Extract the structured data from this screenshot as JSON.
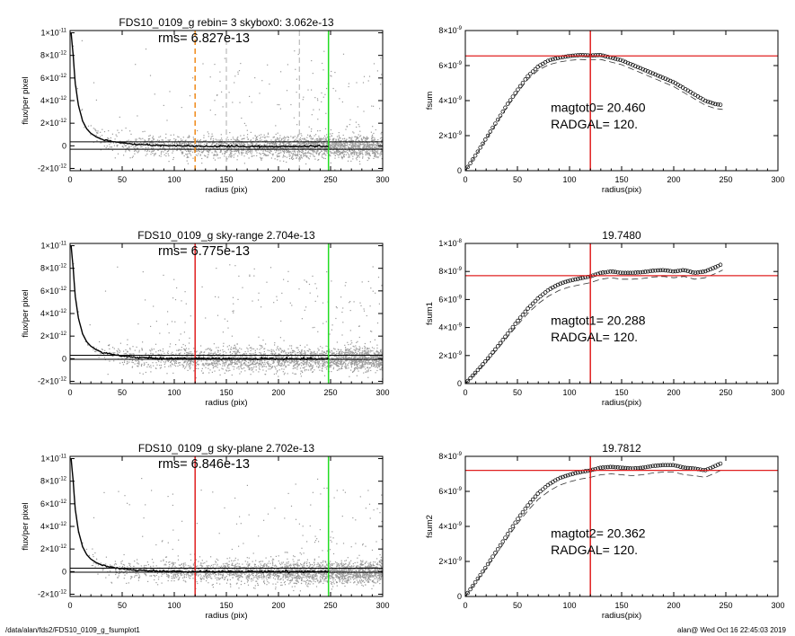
{
  "footer": {
    "path": "/data/alan/fds2/FDS10_0109_g_fsumplot1",
    "stamp": "alan@  Wed Oct 16 22:45:03 2019"
  },
  "colors": {
    "red": "#e02020",
    "green": "#22dd22",
    "orange": "#f08a1a",
    "points": "#9a9a9a",
    "gray_dash": "#999999"
  },
  "chart_data": [
    {
      "type": "scatter",
      "panel": "flux-1",
      "title": "FDS10_0109_g rebin= 3    skybox0:  3.062e-13",
      "subtitle": "rms= 6.827e-13",
      "xlabel": "radius (pix)",
      "ylabel": "flux/per pixel",
      "xlim": [
        0,
        300
      ],
      "ylim": [
        -2.2e-12,
        1.02e-11
      ],
      "xticks": [
        "0",
        "50",
        "100",
        "150",
        "200",
        "250",
        "300"
      ],
      "yticks": [
        {
          "v": -2e-12,
          "m": "-2",
          "e": "-12"
        },
        {
          "v": 0,
          "m": "0",
          "e": ""
        },
        {
          "v": 2e-12,
          "m": "2",
          "e": "-12"
        },
        {
          "v": 4e-12,
          "m": "4",
          "e": "-12"
        },
        {
          "v": 6e-12,
          "m": "6",
          "e": "-12"
        },
        {
          "v": 8e-12,
          "m": "8",
          "e": "-12"
        },
        {
          "v": 1e-11,
          "m": "1",
          "e": "-11"
        }
      ],
      "sky_band": [
        -3e-13,
        3.5e-13
      ],
      "vlines": [
        {
          "x": 120,
          "color": "orange",
          "dash": true
        },
        {
          "x": 150,
          "color": "gray_dash",
          "dash": true
        },
        {
          "x": 220,
          "color": "gray_dash",
          "dash": true
        },
        {
          "x": 248,
          "color": "green",
          "dash": false
        }
      ],
      "profile": [
        [
          1,
          1e-11
        ],
        [
          3,
          8e-12
        ],
        [
          5,
          5.5e-12
        ],
        [
          8,
          3.6e-12
        ],
        [
          12,
          2.2e-12
        ],
        [
          16,
          1.5e-12
        ],
        [
          20,
          1.1e-12
        ],
        [
          25,
          8e-13
        ],
        [
          30,
          6e-13
        ],
        [
          40,
          4e-13
        ],
        [
          50,
          2.5e-13
        ],
        [
          60,
          1.5e-13
        ],
        [
          70,
          1e-13
        ],
        [
          80,
          5e-14
        ],
        [
          100,
          0
        ],
        [
          120,
          -5e-14
        ],
        [
          150,
          -5e-14
        ],
        [
          200,
          -5e-14
        ],
        [
          248,
          -5e-14
        ]
      ],
      "scatter_sigma": 5e-13
    },
    {
      "type": "line",
      "panel": "fsum-1",
      "title": "",
      "xlabel": "radius(pix)",
      "ylabel": "fsum",
      "xlim": [
        0,
        300
      ],
      "ylim": [
        0,
        8e-09
      ],
      "xticks": [
        "0",
        "50",
        "100",
        "150",
        "200",
        "250",
        "300"
      ],
      "yticks": [
        {
          "v": 0,
          "m": "0",
          "e": ""
        },
        {
          "v": 2e-09,
          "m": "2",
          "e": "-9"
        },
        {
          "v": 4e-09,
          "m": "4",
          "e": "-9"
        },
        {
          "v": 6e-09,
          "m": "6",
          "e": "-9"
        },
        {
          "v": 8e-09,
          "m": "8",
          "e": "-9"
        }
      ],
      "hline": 6.55e-09,
      "vline": 120,
      "annot1": "magtot0=  20.460",
      "annot2": "RADGAL=    120.",
      "curve": [
        [
          0,
          0
        ],
        [
          10,
          9e-10
        ],
        [
          20,
          1.85e-09
        ],
        [
          30,
          2.8e-09
        ],
        [
          40,
          3.75e-09
        ],
        [
          50,
          4.6e-09
        ],
        [
          60,
          5.4e-09
        ],
        [
          70,
          5.95e-09
        ],
        [
          80,
          6.3e-09
        ],
        [
          90,
          6.45e-09
        ],
        [
          100,
          6.55e-09
        ],
        [
          110,
          6.6e-09
        ],
        [
          120,
          6.58e-09
        ],
        [
          130,
          6.6e-09
        ],
        [
          140,
          6.45e-09
        ],
        [
          150,
          6.3e-09
        ],
        [
          160,
          6.05e-09
        ],
        [
          170,
          5.8e-09
        ],
        [
          180,
          5.55e-09
        ],
        [
          190,
          5.3e-09
        ],
        [
          200,
          5.05e-09
        ],
        [
          210,
          4.7e-09
        ],
        [
          220,
          4.35e-09
        ],
        [
          230,
          4e-09
        ],
        [
          240,
          3.8e-09
        ],
        [
          247,
          3.75e-09
        ]
      ],
      "dash_offset": -2.5e-10
    },
    {
      "type": "scatter",
      "panel": "flux-2",
      "title": "FDS10_0109_g sky-range  2.704e-13",
      "subtitle": "rms= 6.775e-13",
      "xlabel": "radius (pix)",
      "ylabel": "flux/per pixel",
      "xlim": [
        0,
        300
      ],
      "ylim": [
        -2.2e-12,
        1.02e-11
      ],
      "xticks": [
        "0",
        "50",
        "100",
        "150",
        "200",
        "250",
        "300"
      ],
      "yticks": [
        {
          "v": -2e-12,
          "m": "-2",
          "e": "-12"
        },
        {
          "v": 0,
          "m": "0",
          "e": ""
        },
        {
          "v": 2e-12,
          "m": "2",
          "e": "-12"
        },
        {
          "v": 4e-12,
          "m": "4",
          "e": "-12"
        },
        {
          "v": 6e-12,
          "m": "6",
          "e": "-12"
        },
        {
          "v": 8e-12,
          "m": "8",
          "e": "-12"
        },
        {
          "v": 1e-11,
          "m": "1",
          "e": "-11"
        }
      ],
      "sky_band": [
        -5e-14,
        3e-13
      ],
      "vlines": [
        {
          "x": 120,
          "color": "red",
          "dash": false
        },
        {
          "x": 248,
          "color": "green",
          "dash": false
        }
      ],
      "profile": [
        [
          1,
          1e-11
        ],
        [
          3,
          8e-12
        ],
        [
          5,
          5.5e-12
        ],
        [
          8,
          3.6e-12
        ],
        [
          12,
          2.2e-12
        ],
        [
          16,
          1.5e-12
        ],
        [
          20,
          1.1e-12
        ],
        [
          25,
          8e-13
        ],
        [
          30,
          6e-13
        ],
        [
          40,
          4e-13
        ],
        [
          50,
          2.5e-13
        ],
        [
          60,
          1.5e-13
        ],
        [
          70,
          1e-13
        ],
        [
          80,
          5e-14
        ],
        [
          100,
          2e-14
        ],
        [
          120,
          0
        ],
        [
          150,
          0
        ],
        [
          200,
          0
        ],
        [
          248,
          0
        ]
      ],
      "scatter_sigma": 5e-13
    },
    {
      "type": "line",
      "panel": "fsum-2",
      "title": "19.7480",
      "xlabel": "radius(pix)",
      "ylabel": "fsum1",
      "xlim": [
        0,
        300
      ],
      "ylim": [
        0,
        1e-08
      ],
      "xticks": [
        "0",
        "50",
        "100",
        "150",
        "200",
        "250",
        "300"
      ],
      "yticks": [
        {
          "v": 0,
          "m": "0",
          "e": ""
        },
        {
          "v": 2e-09,
          "m": "2",
          "e": "-9"
        },
        {
          "v": 4e-09,
          "m": "4",
          "e": "-9"
        },
        {
          "v": 6e-09,
          "m": "6",
          "e": "-9"
        },
        {
          "v": 8e-09,
          "m": "8",
          "e": "-9"
        },
        {
          "v": 1e-08,
          "m": "1",
          "e": "-8"
        }
      ],
      "hline": 7.7e-09,
      "vline": 120,
      "annot1": "magtot1=  20.288",
      "annot2": "RADGAL=    120.",
      "curve": [
        [
          0,
          0
        ],
        [
          10,
          8e-10
        ],
        [
          20,
          1.65e-09
        ],
        [
          30,
          2.55e-09
        ],
        [
          40,
          3.5e-09
        ],
        [
          50,
          4.45e-09
        ],
        [
          60,
          5.35e-09
        ],
        [
          70,
          6.1e-09
        ],
        [
          80,
          6.7e-09
        ],
        [
          90,
          7.1e-09
        ],
        [
          100,
          7.35e-09
        ],
        [
          110,
          7.5e-09
        ],
        [
          120,
          7.65e-09
        ],
        [
          130,
          7.9e-09
        ],
        [
          140,
          8e-09
        ],
        [
          150,
          7.9e-09
        ],
        [
          160,
          7.9e-09
        ],
        [
          170,
          7.95e-09
        ],
        [
          180,
          8.05e-09
        ],
        [
          190,
          8.1e-09
        ],
        [
          200,
          8e-09
        ],
        [
          210,
          8.1e-09
        ],
        [
          220,
          7.9e-09
        ],
        [
          230,
          8e-09
        ],
        [
          240,
          8.3e-09
        ],
        [
          247,
          8.55e-09
        ]
      ],
      "dash_offset": -4.5e-10
    },
    {
      "type": "scatter",
      "panel": "flux-3",
      "title": "FDS10_0109_g sky-plane  2.702e-13",
      "subtitle": "rms= 6.846e-13",
      "xlabel": "radius (pix)",
      "ylabel": "flux/per pixel",
      "xlim": [
        0,
        300
      ],
      "ylim": [
        -2.2e-12,
        1.02e-11
      ],
      "xticks": [
        "0",
        "50",
        "100",
        "150",
        "200",
        "250",
        "300"
      ],
      "yticks": [
        {
          "v": -2e-12,
          "m": "-2",
          "e": "-12"
        },
        {
          "v": 0,
          "m": "0",
          "e": ""
        },
        {
          "v": 2e-12,
          "m": "2",
          "e": "-12"
        },
        {
          "v": 4e-12,
          "m": "4",
          "e": "-12"
        },
        {
          "v": 6e-12,
          "m": "6",
          "e": "-12"
        },
        {
          "v": 8e-12,
          "m": "8",
          "e": "-12"
        },
        {
          "v": 1e-11,
          "m": "1",
          "e": "-11"
        }
      ],
      "sky_band": [
        -5e-14,
        3e-13
      ],
      "vlines": [
        {
          "x": 120,
          "color": "red",
          "dash": false
        },
        {
          "x": 248,
          "color": "green",
          "dash": false
        }
      ],
      "profile": [
        [
          1,
          1e-11
        ],
        [
          3,
          8e-12
        ],
        [
          5,
          5.5e-12
        ],
        [
          8,
          3.6e-12
        ],
        [
          12,
          2.2e-12
        ],
        [
          16,
          1.5e-12
        ],
        [
          20,
          1.1e-12
        ],
        [
          25,
          8e-13
        ],
        [
          30,
          6e-13
        ],
        [
          40,
          4e-13
        ],
        [
          50,
          2.5e-13
        ],
        [
          60,
          1.5e-13
        ],
        [
          70,
          1e-13
        ],
        [
          80,
          5e-14
        ],
        [
          100,
          2e-14
        ],
        [
          120,
          0
        ],
        [
          150,
          0
        ],
        [
          200,
          0
        ],
        [
          248,
          0
        ]
      ],
      "scatter_sigma": 5e-13
    },
    {
      "type": "line",
      "panel": "fsum-3",
      "title": "19.7812",
      "xlabel": "radius(pix)",
      "ylabel": "fsum2",
      "xlim": [
        0,
        300
      ],
      "ylim": [
        0,
        8e-09
      ],
      "xticks": [
        "0",
        "50",
        "100",
        "150",
        "200",
        "250",
        "300"
      ],
      "yticks": [
        {
          "v": 0,
          "m": "0",
          "e": ""
        },
        {
          "v": 2e-09,
          "m": "2",
          "e": "-9"
        },
        {
          "v": 4e-09,
          "m": "4",
          "e": "-9"
        },
        {
          "v": 6e-09,
          "m": "6",
          "e": "-9"
        },
        {
          "v": 8e-09,
          "m": "8",
          "e": "-9"
        }
      ],
      "hline": 7.2e-09,
      "vline": 120,
      "annot1": "magtot2=  20.362",
      "annot2": "RADGAL=    120.",
      "curve": [
        [
          0,
          0
        ],
        [
          10,
          8.5e-10
        ],
        [
          20,
          1.7e-09
        ],
        [
          30,
          2.6e-09
        ],
        [
          40,
          3.5e-09
        ],
        [
          50,
          4.4e-09
        ],
        [
          60,
          5.2e-09
        ],
        [
          70,
          5.9e-09
        ],
        [
          80,
          6.4e-09
        ],
        [
          90,
          6.75e-09
        ],
        [
          100,
          6.95e-09
        ],
        [
          110,
          7.1e-09
        ],
        [
          120,
          7.2e-09
        ],
        [
          130,
          7.35e-09
        ],
        [
          140,
          7.4e-09
        ],
        [
          150,
          7.35e-09
        ],
        [
          160,
          7.3e-09
        ],
        [
          170,
          7.35e-09
        ],
        [
          180,
          7.45e-09
        ],
        [
          190,
          7.5e-09
        ],
        [
          200,
          7.5e-09
        ],
        [
          210,
          7.35e-09
        ],
        [
          220,
          7.3e-09
        ],
        [
          230,
          7.2e-09
        ],
        [
          240,
          7.45e-09
        ],
        [
          247,
          7.65e-09
        ]
      ],
      "dash_offset": -4e-10
    }
  ]
}
